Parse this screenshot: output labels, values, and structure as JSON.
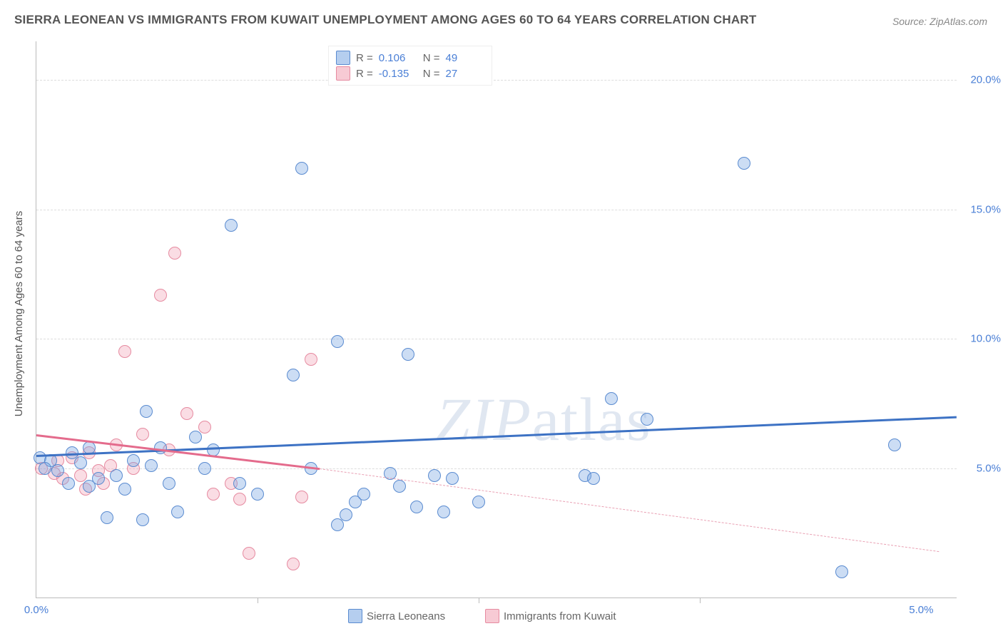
{
  "title": "SIERRA LEONEAN VS IMMIGRANTS FROM KUWAIT UNEMPLOYMENT AMONG AGES 60 TO 64 YEARS CORRELATION CHART",
  "source": "Source: ZipAtlas.com",
  "ylabel": "Unemployment Among Ages 60 to 64 years",
  "watermark": "ZIPatlas",
  "chart": {
    "type": "scatter",
    "xlim": [
      0,
      5.2
    ],
    "ylim": [
      0,
      21.5
    ],
    "xtick_labels": [
      "0.0%",
      "5.0%"
    ],
    "xtick_values": [
      0,
      5.0
    ],
    "xminor_ticks": [
      1.25,
      2.5,
      3.75
    ],
    "ytick_labels": [
      "5.0%",
      "10.0%",
      "15.0%",
      "20.0%"
    ],
    "ytick_values": [
      5,
      10,
      15,
      20
    ],
    "bg": "#ffffff",
    "grid": "#dddddd",
    "colors": {
      "blue_fill": "rgba(120,165,225,0.38)",
      "blue_stroke": "#5a8bd0",
      "pink_fill": "rgba(240,150,170,0.32)",
      "pink_stroke": "#e68aa0",
      "blue_line": "#3d72c4",
      "pink_line": "#e46b8c"
    },
    "marker_size": 16
  },
  "series": {
    "blue": {
      "label": "Sierra Leoneans",
      "R": "0.106",
      "N": "49",
      "trend": {
        "x1": 0.0,
        "y1": 5.5,
        "x2": 5.2,
        "y2": 7.0
      },
      "points": [
        [
          0.02,
          5.4
        ],
        [
          0.08,
          5.3
        ],
        [
          0.05,
          5.0
        ],
        [
          0.12,
          4.9
        ],
        [
          0.2,
          5.6
        ],
        [
          0.25,
          5.2
        ],
        [
          0.3,
          5.8
        ],
        [
          0.35,
          4.6
        ],
        [
          0.4,
          3.1
        ],
        [
          0.45,
          4.7
        ],
        [
          0.5,
          4.2
        ],
        [
          0.55,
          5.3
        ],
        [
          0.62,
          7.2
        ],
        [
          0.7,
          5.8
        ],
        [
          0.75,
          4.4
        ],
        [
          0.8,
          3.3
        ],
        [
          0.9,
          6.2
        ],
        [
          0.95,
          5.0
        ],
        [
          1.0,
          5.7
        ],
        [
          1.1,
          14.4
        ],
        [
          1.15,
          4.4
        ],
        [
          1.25,
          4.0
        ],
        [
          1.45,
          8.6
        ],
        [
          1.5,
          16.6
        ],
        [
          1.55,
          5.0
        ],
        [
          1.7,
          9.9
        ],
        [
          1.75,
          3.2
        ],
        [
          1.8,
          3.7
        ],
        [
          1.85,
          4.0
        ],
        [
          2.05,
          4.3
        ],
        [
          2.1,
          9.4
        ],
        [
          2.15,
          3.5
        ],
        [
          2.25,
          4.7
        ],
        [
          2.35,
          4.6
        ],
        [
          1.7,
          2.8
        ],
        [
          2.5,
          3.7
        ],
        [
          3.1,
          4.7
        ],
        [
          3.15,
          4.6
        ],
        [
          3.25,
          7.7
        ],
        [
          3.45,
          6.9
        ],
        [
          2.0,
          4.8
        ],
        [
          2.3,
          3.3
        ],
        [
          4.0,
          16.8
        ],
        [
          4.55,
          1.0
        ],
        [
          4.85,
          5.9
        ],
        [
          0.18,
          4.4
        ],
        [
          0.6,
          3.0
        ],
        [
          0.65,
          5.1
        ],
        [
          0.3,
          4.3
        ]
      ]
    },
    "pink": {
      "label": "Immigrants from Kuwait",
      "R": "-0.135",
      "N": "27",
      "trend_solid": {
        "x1": 0.0,
        "y1": 6.3,
        "x2": 1.6,
        "y2": 5.0
      },
      "trend_dash": {
        "x1": 1.6,
        "y1": 5.0,
        "x2": 5.1,
        "y2": 1.8
      },
      "points": [
        [
          0.03,
          5.0
        ],
        [
          0.1,
          4.8
        ],
        [
          0.12,
          5.3
        ],
        [
          0.15,
          4.6
        ],
        [
          0.2,
          5.4
        ],
        [
          0.25,
          4.7
        ],
        [
          0.3,
          5.6
        ],
        [
          0.35,
          4.9
        ],
        [
          0.42,
          5.1
        ],
        [
          0.45,
          5.9
        ],
        [
          0.5,
          9.5
        ],
        [
          0.55,
          5.0
        ],
        [
          0.6,
          6.3
        ],
        [
          0.7,
          11.7
        ],
        [
          0.75,
          5.7
        ],
        [
          0.78,
          13.3
        ],
        [
          0.85,
          7.1
        ],
        [
          0.95,
          6.6
        ],
        [
          1.0,
          4.0
        ],
        [
          1.1,
          4.4
        ],
        [
          1.15,
          3.8
        ],
        [
          1.2,
          1.7
        ],
        [
          1.45,
          1.3
        ],
        [
          1.5,
          3.9
        ],
        [
          1.55,
          9.2
        ],
        [
          0.38,
          4.4
        ],
        [
          0.28,
          4.2
        ]
      ]
    }
  },
  "bottom_legend": [
    {
      "k": "b",
      "label": "Sierra Leoneans"
    },
    {
      "k": "p",
      "label": "Immigrants from Kuwait"
    }
  ]
}
